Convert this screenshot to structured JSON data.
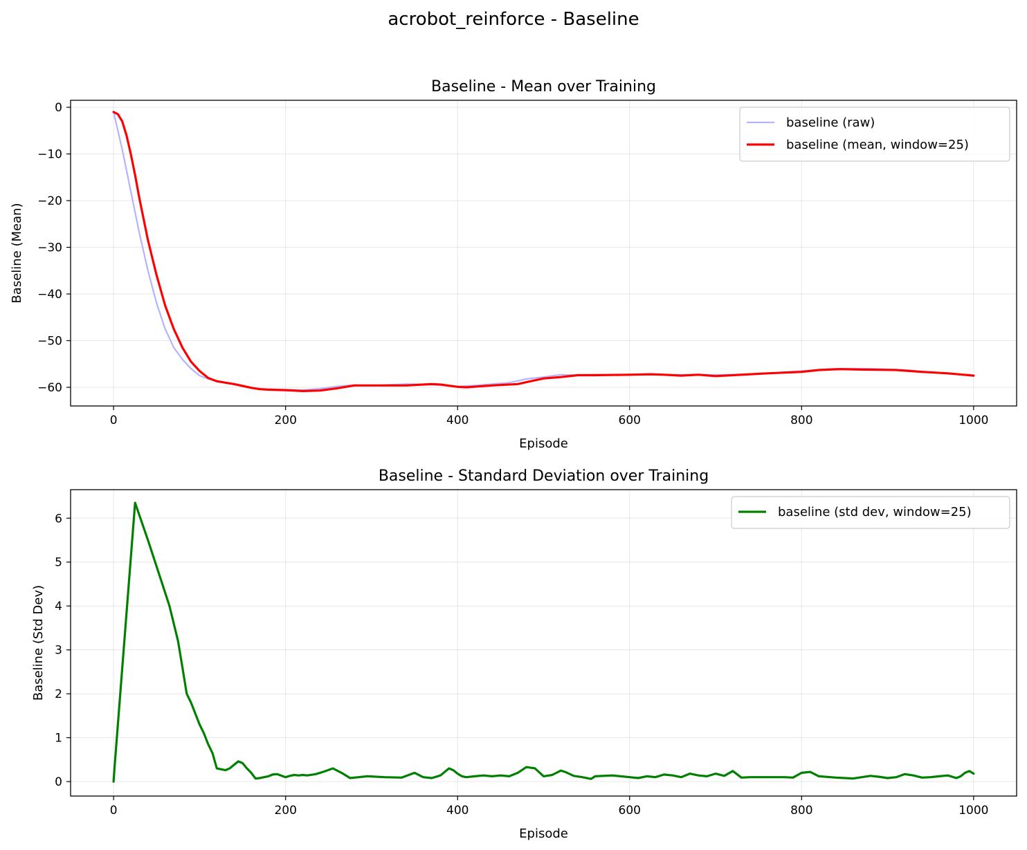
{
  "figure": {
    "suptitle": "acrobot_reinforce - Baseline"
  },
  "chart_data": [
    {
      "type": "line",
      "title": "Baseline - Mean over Training",
      "xlabel": "Episode",
      "ylabel": "Baseline (Mean)",
      "xlim": [
        -50,
        1050
      ],
      "ylim": [
        -64,
        1.5
      ],
      "xticks": [
        0,
        200,
        400,
        600,
        800,
        1000
      ],
      "yticks": [
        0,
        -10,
        -20,
        -30,
        -40,
        -50,
        -60
      ],
      "ytick_labels": [
        "0",
        "−10",
        "−20",
        "−30",
        "−40",
        "−50",
        "−60"
      ],
      "xtick_labels": [
        "0",
        "200",
        "400",
        "600",
        "800",
        "1000"
      ],
      "grid": true,
      "legend": "top-right",
      "series": [
        {
          "name": "baseline (raw)",
          "color": "#b3b3ff",
          "x": [
            0,
            10,
            20,
            30,
            40,
            50,
            60,
            70,
            80,
            90,
            100,
            110,
            120,
            130,
            140,
            150,
            160,
            180,
            200,
            220,
            240,
            260,
            280,
            300,
            340,
            360,
            380,
            400,
            420,
            440,
            460,
            480,
            500,
            520,
            540,
            560,
            600,
            640,
            680,
            720,
            760,
            800,
            840,
            880,
            920,
            960,
            1000
          ],
          "y": [
            -1,
            -9,
            -18,
            -27,
            -35,
            -42,
            -47.5,
            -51.5,
            -54,
            -56,
            -57.5,
            -58.2,
            -58.6,
            -59,
            -59.4,
            -59.7,
            -60.2,
            -60.4,
            -60.5,
            -60.6,
            -60.3,
            -59.8,
            -59.5,
            -59.6,
            -59.3,
            -59.4,
            -59.5,
            -59.8,
            -59.6,
            -59.3,
            -59,
            -58.2,
            -57.8,
            -57.3,
            -57.4,
            -57.3,
            -57.3,
            -57.3,
            -57.3,
            -57.3,
            -57,
            -56.5,
            -56,
            -56,
            -56.3,
            -56.9,
            -57.5
          ]
        },
        {
          "name": "baseline (mean, window=25)",
          "color": "#ff0000",
          "x": [
            0,
            5,
            10,
            15,
            20,
            25,
            30,
            35,
            40,
            50,
            60,
            70,
            80,
            90,
            100,
            110,
            120,
            130,
            140,
            150,
            160,
            170,
            180,
            200,
            220,
            240,
            260,
            280,
            300,
            320,
            340,
            360,
            370,
            380,
            400,
            410,
            440,
            470,
            480,
            500,
            520,
            540,
            560,
            600,
            625,
            640,
            660,
            680,
            700,
            720,
            760,
            800,
            820,
            845,
            870,
            910,
            940,
            970,
            1000
          ],
          "y": [
            -1,
            -1.5,
            -3,
            -6,
            -10,
            -14.5,
            -19.5,
            -24,
            -28.5,
            -36,
            -42.5,
            -47.5,
            -51.5,
            -54.5,
            -56.5,
            -58,
            -58.7,
            -59,
            -59.3,
            -59.7,
            -60.1,
            -60.4,
            -60.5,
            -60.6,
            -60.8,
            -60.7,
            -60.2,
            -59.6,
            -59.6,
            -59.6,
            -59.6,
            -59.4,
            -59.3,
            -59.4,
            -59.9,
            -60,
            -59.6,
            -59.3,
            -58.9,
            -58.1,
            -57.8,
            -57.4,
            -57.4,
            -57.3,
            -57.2,
            -57.3,
            -57.5,
            -57.3,
            -57.6,
            -57.4,
            -57,
            -56.7,
            -56.3,
            -56.1,
            -56.2,
            -56.3,
            -56.7,
            -57,
            -57.5
          ]
        }
      ]
    },
    {
      "type": "line",
      "title": "Baseline - Standard Deviation over Training",
      "xlabel": "Episode",
      "ylabel": "Baseline (Std Dev)",
      "xlim": [
        -50,
        1050
      ],
      "ylim": [
        -0.33,
        6.65
      ],
      "xticks": [
        0,
        200,
        400,
        600,
        800,
        1000
      ],
      "yticks": [
        0,
        1,
        2,
        3,
        4,
        5,
        6
      ],
      "ytick_labels": [
        "0",
        "1",
        "2",
        "3",
        "4",
        "5",
        "6"
      ],
      "xtick_labels": [
        "0",
        "200",
        "400",
        "600",
        "800",
        "1000"
      ],
      "grid": true,
      "legend": "top-right",
      "series": [
        {
          "name": "baseline (std dev, window=25)",
          "color": "#008000",
          "x": [
            0,
            1,
            25,
            40,
            55,
            65,
            75,
            80,
            85,
            90,
            95,
            100,
            105,
            110,
            115,
            120,
            130,
            135,
            140,
            145,
            150,
            155,
            160,
            165,
            170,
            175,
            180,
            185,
            190,
            200,
            205,
            210,
            215,
            220,
            225,
            235,
            245,
            255,
            265,
            275,
            285,
            295,
            315,
            335,
            350,
            360,
            370,
            380,
            390,
            395,
            400,
            405,
            410,
            420,
            430,
            440,
            450,
            460,
            470,
            480,
            490,
            500,
            510,
            520,
            525,
            535,
            545,
            555,
            560,
            580,
            600,
            610,
            620,
            630,
            640,
            650,
            660,
            670,
            680,
            690,
            700,
            710,
            720,
            730,
            740,
            760,
            780,
            790,
            800,
            810,
            820,
            840,
            860,
            880,
            890,
            900,
            910,
            920,
            930,
            940,
            950,
            960,
            970,
            980,
            985,
            990,
            995,
            1000
          ],
          "y": [
            0,
            0.3,
            6.35,
            5.5,
            4.6,
            4.0,
            3.2,
            2.6,
            2.0,
            1.8,
            1.55,
            1.3,
            1.1,
            0.85,
            0.65,
            0.3,
            0.26,
            0.3,
            0.38,
            0.46,
            0.42,
            0.3,
            0.2,
            0.07,
            0.08,
            0.1,
            0.12,
            0.16,
            0.17,
            0.1,
            0.13,
            0.15,
            0.14,
            0.15,
            0.14,
            0.17,
            0.23,
            0.3,
            0.2,
            0.08,
            0.1,
            0.12,
            0.1,
            0.09,
            0.2,
            0.1,
            0.08,
            0.14,
            0.3,
            0.26,
            0.18,
            0.12,
            0.1,
            0.12,
            0.14,
            0.12,
            0.14,
            0.12,
            0.2,
            0.33,
            0.3,
            0.12,
            0.15,
            0.25,
            0.22,
            0.13,
            0.1,
            0.06,
            0.12,
            0.14,
            0.1,
            0.08,
            0.12,
            0.1,
            0.16,
            0.14,
            0.1,
            0.18,
            0.14,
            0.12,
            0.18,
            0.13,
            0.24,
            0.09,
            0.1,
            0.1,
            0.1,
            0.09,
            0.2,
            0.22,
            0.12,
            0.09,
            0.07,
            0.13,
            0.11,
            0.08,
            0.1,
            0.17,
            0.14,
            0.09,
            0.1,
            0.12,
            0.14,
            0.08,
            0.12,
            0.2,
            0.24,
            0.18
          ]
        }
      ]
    }
  ]
}
